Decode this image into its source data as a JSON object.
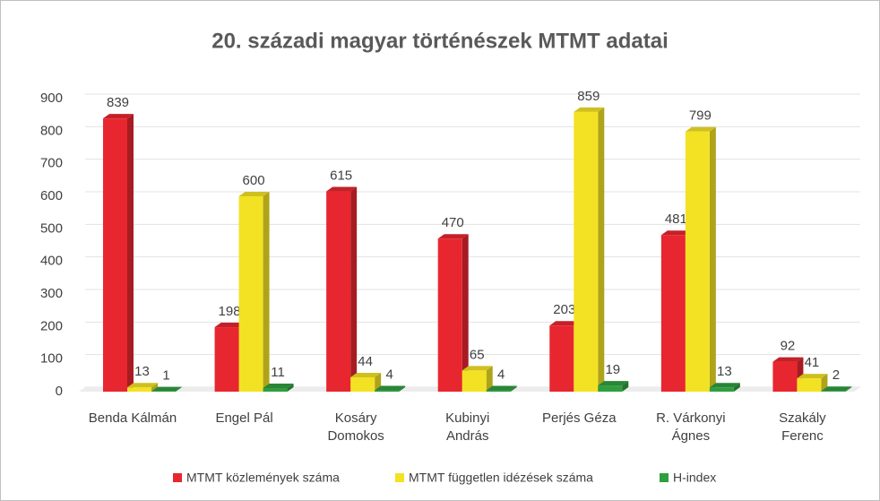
{
  "chart_data": {
    "type": "bar3d",
    "title": "20. századi magyar történészek MTMT adatai",
    "categories": [
      "Benda Kálmán",
      "Engel Pál",
      "Kosáry Domokos",
      "Kubinyi András",
      "Perjés Géza",
      "R. Várkonyi Ágnes",
      "Szakály Ferenc"
    ],
    "series": [
      {
        "name": "MTMT közlemények száma",
        "color": "#e8262f",
        "values": [
          839,
          198,
          615,
          470,
          203,
          481,
          92
        ]
      },
      {
        "name": "MTMT független idézések száma",
        "color": "#f3e224",
        "values": [
          13,
          600,
          44,
          65,
          859,
          799,
          41
        ]
      },
      {
        "name": "H-index",
        "color": "#2f9e3f",
        "values": [
          1,
          11,
          4,
          4,
          19,
          13,
          2
        ]
      }
    ],
    "ylim": [
      0,
      900
    ],
    "yticks": [
      0,
      100,
      200,
      300,
      400,
      500,
      600,
      700,
      800,
      900
    ],
    "grid": true,
    "legend": "bottom"
  }
}
